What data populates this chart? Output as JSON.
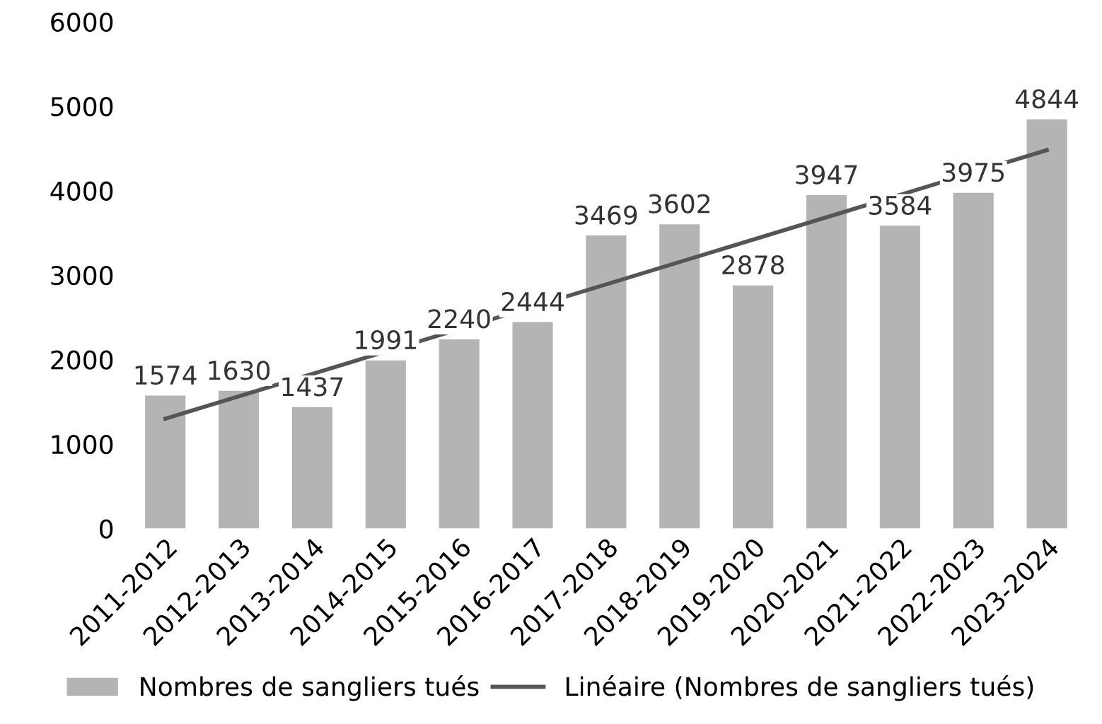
{
  "chart_data": {
    "type": "bar",
    "categories": [
      "2011-2012",
      "2012-2013",
      "2013-2014",
      "2014-2015",
      "2015-2016",
      "2016-2017",
      "2017-2018",
      "2018-2019",
      "2019-2020",
      "2020-2021",
      "2021-2022",
      "2022-2023",
      "2023-2024"
    ],
    "series": [
      {
        "name": "Nombres de sangliers tués",
        "color": "#b4b4b4",
        "values": [
          1574,
          1630,
          1437,
          1991,
          2240,
          2444,
          3469,
          3602,
          2878,
          3947,
          3584,
          3975,
          4844
        ],
        "value_labels": [
          "1574",
          "1630",
          "1437",
          "1991",
          "2240",
          "2444",
          "3469",
          "3602",
          "2878",
          "3947",
          "3584",
          "3975",
          "4844"
        ]
      },
      {
        "name": "Linéaire (Nombres de sangliers tués)",
        "type": "line",
        "color": "#555555",
        "x": [
          "2011-2012",
          "2023-2024"
        ],
        "values": [
          1300,
          4480
        ]
      }
    ],
    "ylim": [
      0,
      6000
    ],
    "yticks": [
      0,
      1000,
      2000,
      3000,
      4000,
      5000,
      6000
    ],
    "grid": false,
    "legend": "bottom"
  }
}
